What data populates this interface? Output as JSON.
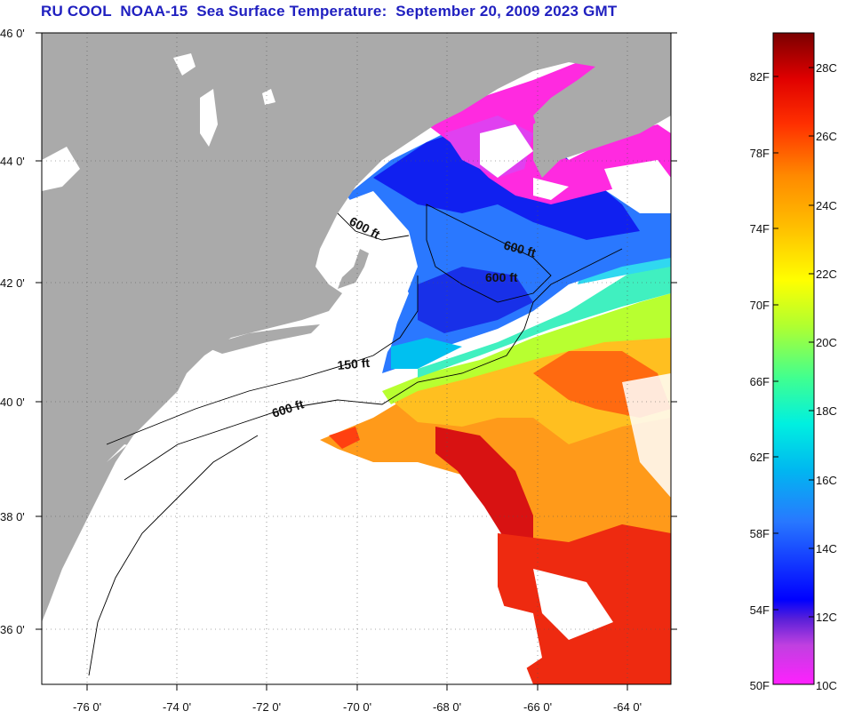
{
  "title": "RU COOL  NOAA-15  Sea Surface Temperature:  September 20, 2009 2023 GMT",
  "lat_labels": [
    "46 0'",
    "44 0'",
    "42 0'",
    "40 0'",
    "38 0'",
    "36 0'"
  ],
  "lon_labels": [
    "-76 0'",
    "-74 0'",
    "-72 0'",
    "-70 0'",
    "-68 0'",
    "-66 0'",
    "-64 0'"
  ],
  "contour_labels": {
    "c1": "600 ft",
    "c2": "600 ft",
    "c3": "600 ft",
    "c4": "150 ft",
    "c5": "600 ft"
  },
  "colorbar": {
    "fahrenheit": [
      "82F",
      "78F",
      "74F",
      "70F",
      "66F",
      "62F",
      "58F",
      "54F",
      "50F"
    ],
    "celsius": [
      "28C",
      "26C",
      "24C",
      "22C",
      "20C",
      "18C",
      "16C",
      "14C",
      "12C",
      "10C"
    ]
  },
  "colors": {
    "land": "#aaaaaa",
    "cloud": "#ffffff",
    "title": "#2020c0"
  }
}
